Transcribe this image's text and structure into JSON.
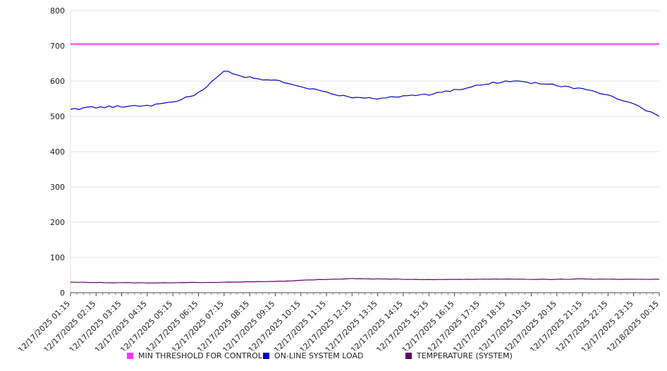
{
  "chart_data": {
    "type": "line",
    "title": "",
    "xlabel": "",
    "ylabel": "",
    "ylim": [
      0,
      800
    ],
    "y_ticks": [
      0,
      100,
      200,
      300,
      400,
      500,
      600,
      700,
      800
    ],
    "grid": "horizontal",
    "legend_position": "bottom",
    "categories": [
      "12/17/2025 01:15",
      "12/17/2025 02:15",
      "12/17/2025 03:15",
      "12/17/2025 04:15",
      "12/17/2025 05:15",
      "12/17/2025 06:15",
      "12/17/2025 07:15",
      "12/17/2025 08:15",
      "12/17/2025 09:15",
      "12/17/2025 10:15",
      "12/17/2025 11:15",
      "12/17/2025 12:15",
      "12/17/2025 13:15",
      "12/17/2025 14:15",
      "12/17/2025 15:15",
      "12/17/2025 16:15",
      "12/17/2025 17:15",
      "12/17/2025 18:15",
      "12/17/2025 19:15",
      "12/17/2025 20:15",
      "12/17/2025 21:15",
      "12/17/2025 22:15",
      "12/17/2025 23:15",
      "12/18/2025 00:15"
    ],
    "series": [
      {
        "name": "MIN THRESHOLD FOR CONTROL",
        "color": "#ff33ff",
        "width": 2,
        "noise": 0,
        "values": [
          705,
          705,
          705,
          705,
          705,
          705,
          705,
          705,
          705,
          705,
          705,
          705,
          705,
          705,
          705,
          705,
          705,
          705,
          705,
          705,
          705,
          705,
          705,
          705
        ]
      },
      {
        "name": "ON-LINE SYSTEM LOAD",
        "color": "#0000cc",
        "width": 1.2,
        "noise": 3,
        "values": [
          520,
          526,
          528,
          530,
          540,
          566,
          628,
          610,
          602,
          585,
          568,
          554,
          552,
          556,
          562,
          574,
          590,
          600,
          596,
          588,
          578,
          562,
          534,
          500
        ]
      },
      {
        "name": "TEMPERATURE (SYSTEM)",
        "color": "#660066",
        "width": 1.2,
        "noise": 0.6,
        "values": [
          30,
          29,
          28,
          28,
          28,
          29,
          30,
          31,
          32,
          35,
          38,
          40,
          39,
          38,
          37,
          38,
          38,
          39,
          38,
          38,
          39,
          38,
          38,
          38
        ]
      }
    ]
  }
}
